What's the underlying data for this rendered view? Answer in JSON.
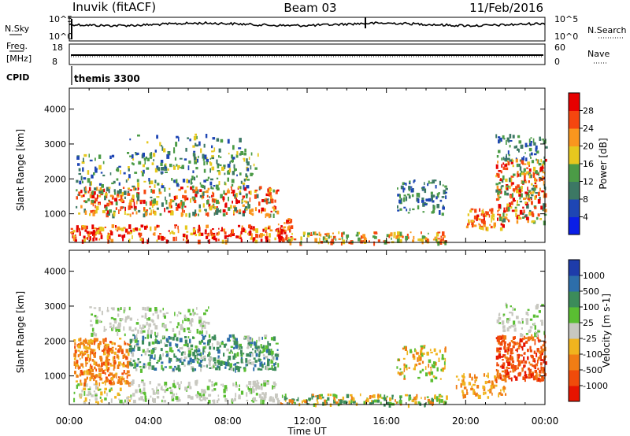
{
  "chart_data": {
    "type": "heatmap",
    "header": {
      "site": "Inuvik (fitACF)",
      "beam": "Beam 03",
      "date": "11/Feb/2016"
    },
    "noise_panel": {
      "left_label": "N.Sky",
      "right_label": "N.Search",
      "left_ticks": [
        "10^5",
        "10^0"
      ],
      "right_ticks": [
        "10^5",
        "10^0"
      ]
    },
    "freq_panel": {
      "left_label_1": "Freq.",
      "left_label_2": "[MHz]",
      "right_label": "Nave",
      "left_ticks": [
        "18",
        "8"
      ],
      "right_ticks": [
        "60",
        "0"
      ]
    },
    "cpid": {
      "label": "CPID",
      "value": "themis 3300"
    },
    "x_axis": {
      "label": "Time UT",
      "ticks": [
        "00:00",
        "04:00",
        "08:00",
        "12:00",
        "16:00",
        "20:00",
        "00:00"
      ],
      "range_hours": [
        0,
        24
      ]
    },
    "y_axis": {
      "label": "Slant Range [km]",
      "ticks": [
        "1000",
        "2000",
        "3000",
        "4000"
      ],
      "range_km": [
        180,
        4600
      ]
    },
    "power_scale": {
      "label": "Power [dB]",
      "ticks": [
        "4",
        "8",
        "12",
        "16",
        "20",
        "24",
        "28"
      ],
      "colors": [
        "#0a1ee6",
        "#1e46b4",
        "#3c7864",
        "#4b9b46",
        "#e6c81e",
        "#fa961e",
        "#f5460f",
        "#e60000"
      ]
    },
    "velocity_scale": {
      "label": "Velocity [m s-1]",
      "ticks": [
        "1000",
        "500",
        "100",
        "25",
        "-25",
        "-100",
        "-500",
        "-1000"
      ],
      "colors": [
        "#1e3caa",
        "#2d6eaa",
        "#3c8c5a",
        "#5abe32",
        "#c8c8c0",
        "#f0b41e",
        "#f07d14",
        "#f04b0a",
        "#e61400"
      ]
    }
  }
}
